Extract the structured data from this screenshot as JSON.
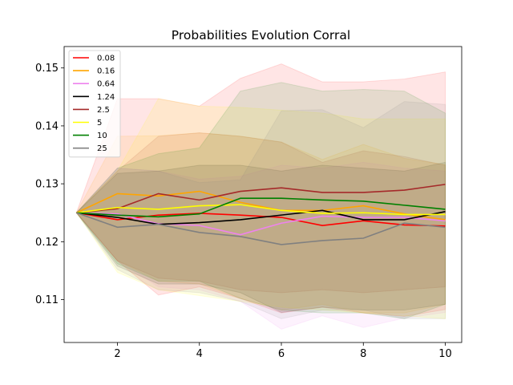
{
  "chart_data": {
    "type": "line",
    "title": "Probabilities Evolution Corral",
    "xlabel": "",
    "ylabel": "",
    "xlim": [
      0.7,
      10.4
    ],
    "ylim": [
      0.1026,
      0.1537
    ],
    "xticks": [
      2,
      4,
      6,
      8,
      10
    ],
    "yticks": [
      0.11,
      0.12,
      0.13,
      0.14,
      0.15
    ],
    "ytick_labels": [
      "0.11",
      "0.12",
      "0.13",
      "0.14",
      "0.15"
    ],
    "grid": false,
    "legend_position": "top-left",
    "x": [
      1,
      2,
      3,
      4,
      5,
      6,
      7,
      8,
      9,
      10
    ],
    "series": [
      {
        "name": "0.08",
        "color": "#ff0000",
        "values": [
          0.125,
          0.1238,
          0.1246,
          0.1249,
          0.1246,
          0.1242,
          0.1228,
          0.1236,
          0.1229,
          0.1227
        ],
        "upper": [
          0.125,
          0.1447,
          0.1447,
          0.1434,
          0.1482,
          0.1507,
          0.1476,
          0.1476,
          0.1481,
          0.1493
        ],
        "lower": [
          0.125,
          0.1167,
          0.1108,
          0.1122,
          0.1102,
          0.1077,
          0.1087,
          0.1077,
          0.1071,
          0.1083
        ]
      },
      {
        "name": "0.16",
        "color": "#ffa500",
        "values": [
          0.125,
          0.1283,
          0.1279,
          0.1287,
          0.1268,
          0.1254,
          0.1254,
          0.1262,
          0.1248,
          0.1238
        ],
        "upper": [
          0.125,
          0.1382,
          0.1383,
          0.1388,
          0.1382,
          0.1372,
          0.1342,
          0.1368,
          0.1344,
          0.1333
        ],
        "lower": [
          0.125,
          0.1167,
          0.1132,
          0.1127,
          0.1102,
          0.1082,
          0.1092,
          0.1077,
          0.1077,
          0.1092
        ]
      },
      {
        "name": "0.64",
        "color": "#ee82ee",
        "values": [
          0.125,
          0.1248,
          0.1231,
          0.1228,
          0.1212,
          0.1232,
          0.1244,
          0.1242,
          0.1242,
          0.1236
        ],
        "upper": [
          0.125,
          0.1327,
          0.1322,
          0.1308,
          0.1313,
          0.1332,
          0.1327,
          0.1337,
          0.1327,
          0.1322
        ],
        "lower": [
          0.125,
          0.1167,
          0.1122,
          0.1117,
          0.1097,
          0.1049,
          0.1072,
          0.1052,
          0.1068,
          0.1078
        ]
      },
      {
        "name": "1.24",
        "color": "#000000",
        "values": [
          0.125,
          0.1242,
          0.123,
          0.1233,
          0.1238,
          0.1246,
          0.1254,
          0.1238,
          0.1238,
          0.1252
        ],
        "upper": [
          0.125,
          0.1318,
          0.1322,
          0.1332,
          0.1332,
          0.1322,
          0.1332,
          0.1327,
          0.1322,
          0.1337
        ],
        "lower": [
          0.125,
          0.1158,
          0.1127,
          0.1127,
          0.1112,
          0.1078,
          0.1087,
          0.1082,
          0.1082,
          0.1092
        ]
      },
      {
        "name": "2.5",
        "color": "#a52a2a",
        "values": [
          0.125,
          0.1257,
          0.1283,
          0.1272,
          0.1287,
          0.1293,
          0.1285,
          0.1285,
          0.1289,
          0.1299
        ],
        "upper": [
          0.125,
          0.1322,
          0.1382,
          0.1388,
          0.1382,
          0.1372,
          0.1337,
          0.1357,
          0.1347,
          0.1332
        ],
        "lower": [
          0.125,
          0.1167,
          0.1137,
          0.1132,
          0.1117,
          0.1112,
          0.1117,
          0.1112,
          0.1117,
          0.1122
        ]
      },
      {
        "name": "5",
        "color": "#ffff00",
        "values": [
          0.125,
          0.1259,
          0.1256,
          0.1262,
          0.1264,
          0.1254,
          0.1249,
          0.125,
          0.1247,
          0.1247
        ],
        "upper": [
          0.125,
          0.1322,
          0.1447,
          0.1434,
          0.1432,
          0.1427,
          0.1422,
          0.1412,
          0.1412,
          0.1412
        ],
        "lower": [
          0.125,
          0.1147,
          0.1117,
          0.1107,
          0.1097,
          0.1087,
          0.1082,
          0.1077,
          0.1072,
          0.1067
        ]
      },
      {
        "name": "10",
        "color": "#008000",
        "values": [
          0.125,
          0.1246,
          0.1243,
          0.1248,
          0.1275,
          0.1275,
          0.1272,
          0.127,
          0.1263,
          0.1256
        ],
        "upper": [
          0.125,
          0.1327,
          0.1352,
          0.1362,
          0.146,
          0.1475,
          0.146,
          0.1463,
          0.146,
          0.1422
        ],
        "lower": [
          0.125,
          0.1162,
          0.1132,
          0.1132,
          0.1102,
          0.1082,
          0.1077,
          0.1077,
          0.1067,
          0.1092
        ]
      },
      {
        "name": "25",
        "color": "#808080",
        "values": [
          0.125,
          0.1225,
          0.123,
          0.1216,
          0.1209,
          0.1195,
          0.1202,
          0.1206,
          0.1232,
          0.1225
        ],
        "upper": [
          0.125,
          0.1327,
          0.1322,
          0.1302,
          0.1307,
          0.1426,
          0.1428,
          0.1397,
          0.1442,
          0.1437
        ],
        "lower": [
          0.125,
          0.1152,
          0.1117,
          0.1112,
          0.1097,
          0.1067,
          0.1082,
          0.1082,
          0.1067,
          0.1067
        ]
      }
    ]
  }
}
